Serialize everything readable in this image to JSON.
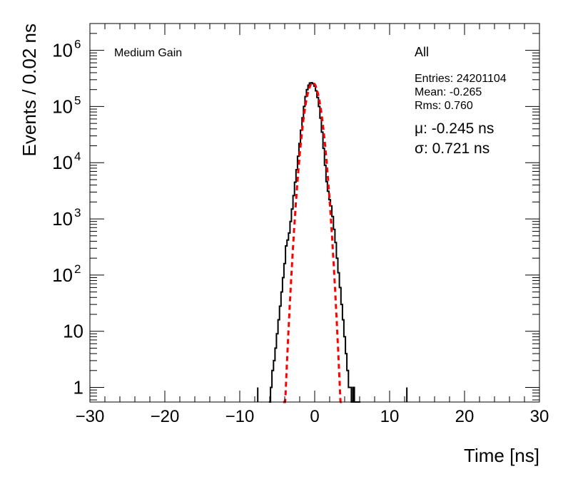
{
  "chart_data": {
    "type": "histogram",
    "title": "",
    "xlabel": "Time [ns]",
    "ylabel": "Events / 0.02 ns",
    "xlim": [
      -30,
      30
    ],
    "ylim": [
      0.55,
      3000000
    ],
    "y_scale": "log",
    "grid": false,
    "legend": "none",
    "x_ticks": [
      -30,
      -20,
      -10,
      0,
      10,
      20,
      30
    ],
    "x_tick_labels": [
      "−30",
      "−20",
      "−10",
      "0",
      "10",
      "20",
      "30"
    ],
    "y_ticks": [
      1,
      10,
      100,
      1000,
      10000,
      100000,
      1000000
    ],
    "y_tick_labels": [
      {
        "base": "1",
        "exp": ""
      },
      {
        "base": "10",
        "exp": ""
      },
      {
        "base": "10",
        "exp": "2"
      },
      {
        "base": "10",
        "exp": "3"
      },
      {
        "base": "10",
        "exp": "4"
      },
      {
        "base": "10",
        "exp": "5"
      },
      {
        "base": "10",
        "exp": "6"
      }
    ],
    "labels": {
      "gain": "Medium Gain",
      "selection": "All",
      "entries": "Entries: 24201104",
      "mean": "Mean: -0.265",
      "rms": "Rms: 0.760",
      "fit_mu": "μ: -0.245 ns",
      "fit_sigma": "σ: 0.721 ns"
    },
    "fit": {
      "mu": -0.245,
      "sigma": 0.721,
      "peak": 265000,
      "color": "#ff0000"
    },
    "series": [
      {
        "x": [
          -6.0,
          -5.8,
          -5.6,
          -5.4,
          -5.2,
          -5.0,
          -4.8,
          -4.6,
          -4.4,
          -4.2,
          -4.0,
          -3.8,
          -3.6,
          -3.4,
          -3.2,
          -3.0,
          -2.8,
          -2.6,
          -2.4,
          -2.2,
          -2.0,
          -1.8,
          -1.6,
          -1.4,
          -1.2,
          -1.0,
          -0.8,
          -0.6,
          -0.4,
          -0.2,
          0.0,
          0.2,
          0.4,
          0.6,
          0.8,
          1.0,
          1.2,
          1.4,
          1.6,
          1.8,
          2.0,
          2.2,
          2.4,
          2.6,
          2.8,
          3.0,
          3.2,
          3.4,
          3.6,
          3.8,
          4.0,
          4.2,
          4.4,
          4.6,
          4.8,
          5.0,
          5.2,
          5.4,
          5.6,
          5.8,
          6.0
        ],
        "values": [
          0.55,
          1,
          2,
          3,
          5,
          9,
          16,
          28,
          50,
          90,
          160,
          330,
          420,
          560,
          900,
          1500,
          2600,
          4500,
          7500,
          13000,
          22000,
          38000,
          63000,
          100000,
          150000,
          200000,
          240000,
          262000,
          265000,
          255000,
          230000,
          190000,
          145000,
          100000,
          62000,
          35000,
          18000,
          9000,
          4600,
          3100,
          2200,
          1700,
          1100,
          650,
          380,
          200,
          110,
          60,
          30,
          16,
          8,
          4,
          2,
          1,
          1,
          0.55,
          1,
          0.55,
          0.55,
          0.55,
          0.55
        ],
        "color": "#000000"
      }
    ],
    "isolated_entries": [
      -7.6,
      12.3
    ]
  }
}
